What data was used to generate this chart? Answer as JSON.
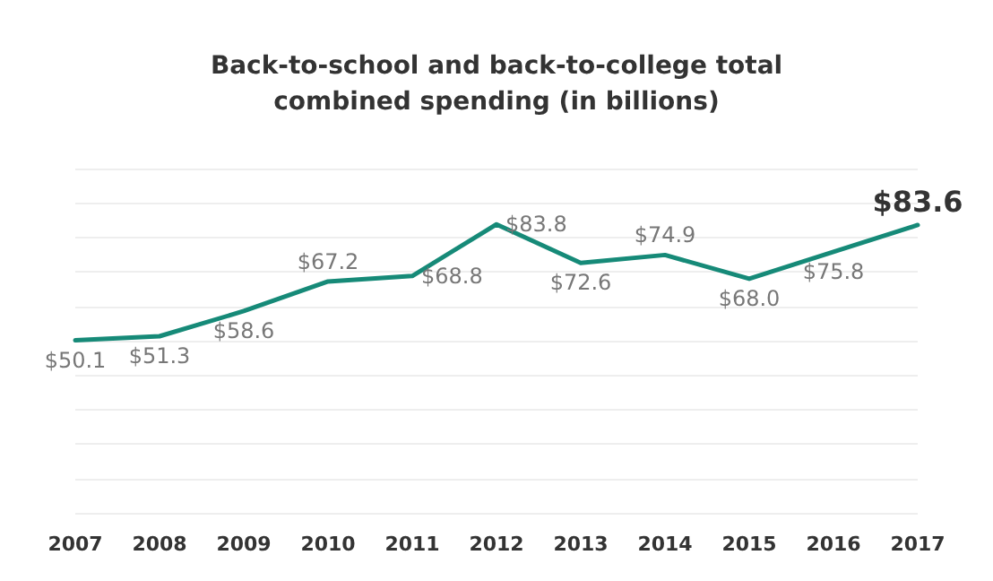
{
  "chart_data": {
    "type": "line",
    "title": "Back-to-school and back-to-college total\ncombined spending (in billions)",
    "categories": [
      "2007",
      "2008",
      "2009",
      "2010",
      "2011",
      "2012",
      "2013",
      "2014",
      "2015",
      "2016",
      "2017"
    ],
    "series": [
      {
        "color": "#168a78",
        "values": [
          50.1,
          51.3,
          58.6,
          67.2,
          68.8,
          83.8,
          72.6,
          74.9,
          68.0,
          75.8,
          83.6
        ],
        "value_labels": [
          "$50.1",
          "$51.3",
          "$58.6",
          "$67.2",
          "$68.8",
          "$83.8",
          "$72.6",
          "$74.9",
          "$68.0",
          "$75.8",
          "$83.6"
        ]
      }
    ],
    "grid": "y",
    "tick_labels": "x",
    "marker": "none",
    "line_style": "solid"
  }
}
